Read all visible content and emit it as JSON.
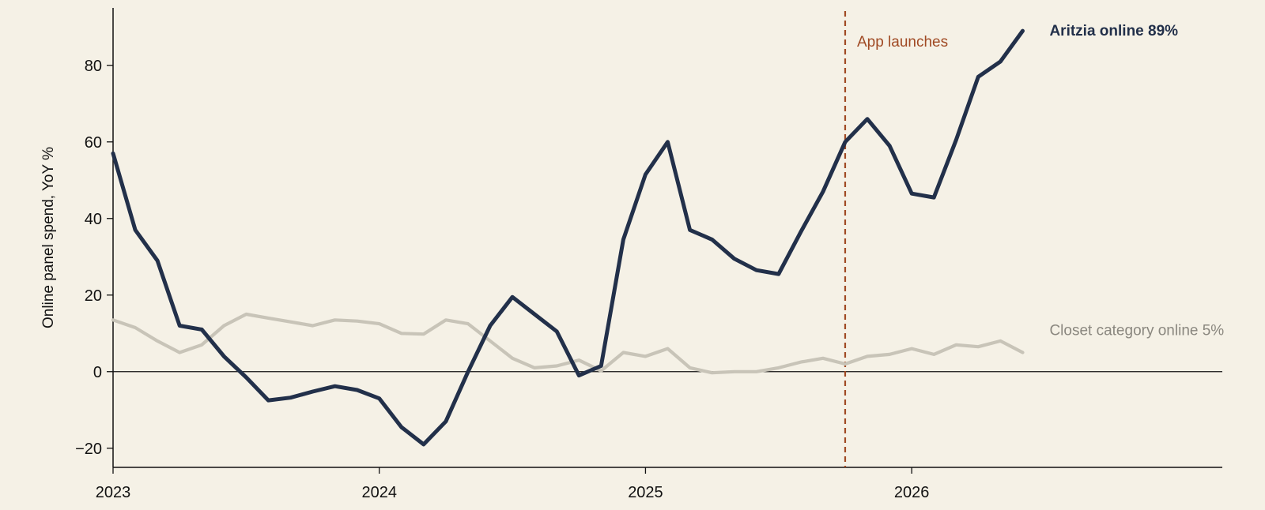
{
  "chart_data": {
    "type": "line",
    "ylabel": "Online panel spend, YoY %",
    "xlabel": "",
    "xlim": [
      "2023-01",
      "2027-03"
    ],
    "ylim": [
      -25,
      95
    ],
    "x_ticks": [
      {
        "value": "2023-01",
        "label": "2023"
      },
      {
        "value": "2024-01",
        "label": "2024"
      },
      {
        "value": "2025-01",
        "label": "2025"
      },
      {
        "value": "2026-01",
        "label": "2026"
      }
    ],
    "y_ticks": [
      {
        "value": -20,
        "label": "−20"
      },
      {
        "value": 0,
        "label": "0"
      },
      {
        "value": 20,
        "label": "20"
      },
      {
        "value": 40,
        "label": "40"
      },
      {
        "value": 60,
        "label": "60"
      },
      {
        "value": 80,
        "label": "80"
      }
    ],
    "x": [
      "2023-01",
      "2023-02",
      "2023-03",
      "2023-04",
      "2023-05",
      "2023-06",
      "2023-07",
      "2023-08",
      "2023-09",
      "2023-10",
      "2023-11",
      "2023-12",
      "2024-01",
      "2024-02",
      "2024-03",
      "2024-04",
      "2024-05",
      "2024-06",
      "2024-07",
      "2024-08",
      "2024-09",
      "2024-10",
      "2024-11",
      "2024-12",
      "2025-01",
      "2025-02",
      "2025-03",
      "2025-04",
      "2025-05",
      "2025-06",
      "2025-07",
      "2025-08",
      "2025-09",
      "2025-10",
      "2025-11",
      "2025-12",
      "2026-01",
      "2026-02",
      "2026-03",
      "2026-04",
      "2026-05",
      "2026-06"
    ],
    "series": [
      {
        "name": "Aritzia online",
        "end_label": "Aritzia online 89%",
        "color": "#22304a",
        "values": [
          57,
          37,
          29,
          12,
          11,
          4,
          -1.5,
          -7.5,
          -6.8,
          -5.2,
          -3.8,
          -4.8,
          -7,
          -14.5,
          -19,
          -13,
          0,
          12,
          19.5,
          15,
          10.5,
          -1,
          1.5,
          34.5,
          51.5,
          60,
          37,
          34.5,
          29.5,
          26.5,
          25.5,
          36.5,
          47,
          60,
          66,
          59,
          46.5,
          45.5,
          60.5,
          77,
          81,
          89
        ]
      },
      {
        "name": "Closet category online",
        "end_label": "Closet category online 5%",
        "color": "#c8c4b8",
        "label_color": "#8a877f",
        "values": [
          13.5,
          11.5,
          8,
          5,
          7,
          12,
          15,
          14,
          13,
          12,
          13.5,
          13.2,
          12.5,
          10,
          9.8,
          13.5,
          12.5,
          8,
          3.5,
          1,
          1.5,
          3,
          0.2,
          5,
          4,
          6,
          1,
          -0.3,
          0,
          0,
          1,
          2.5,
          3.5,
          2,
          4,
          4.5,
          6,
          4.5,
          7,
          6.5,
          8,
          5
        ]
      }
    ],
    "annotations": [
      {
        "type": "vline",
        "x": "2025-10",
        "label": "App launches",
        "color": "#a04a24",
        "style": "dashed"
      }
    ],
    "zero_line": true,
    "grid": false,
    "legend": "none"
  }
}
